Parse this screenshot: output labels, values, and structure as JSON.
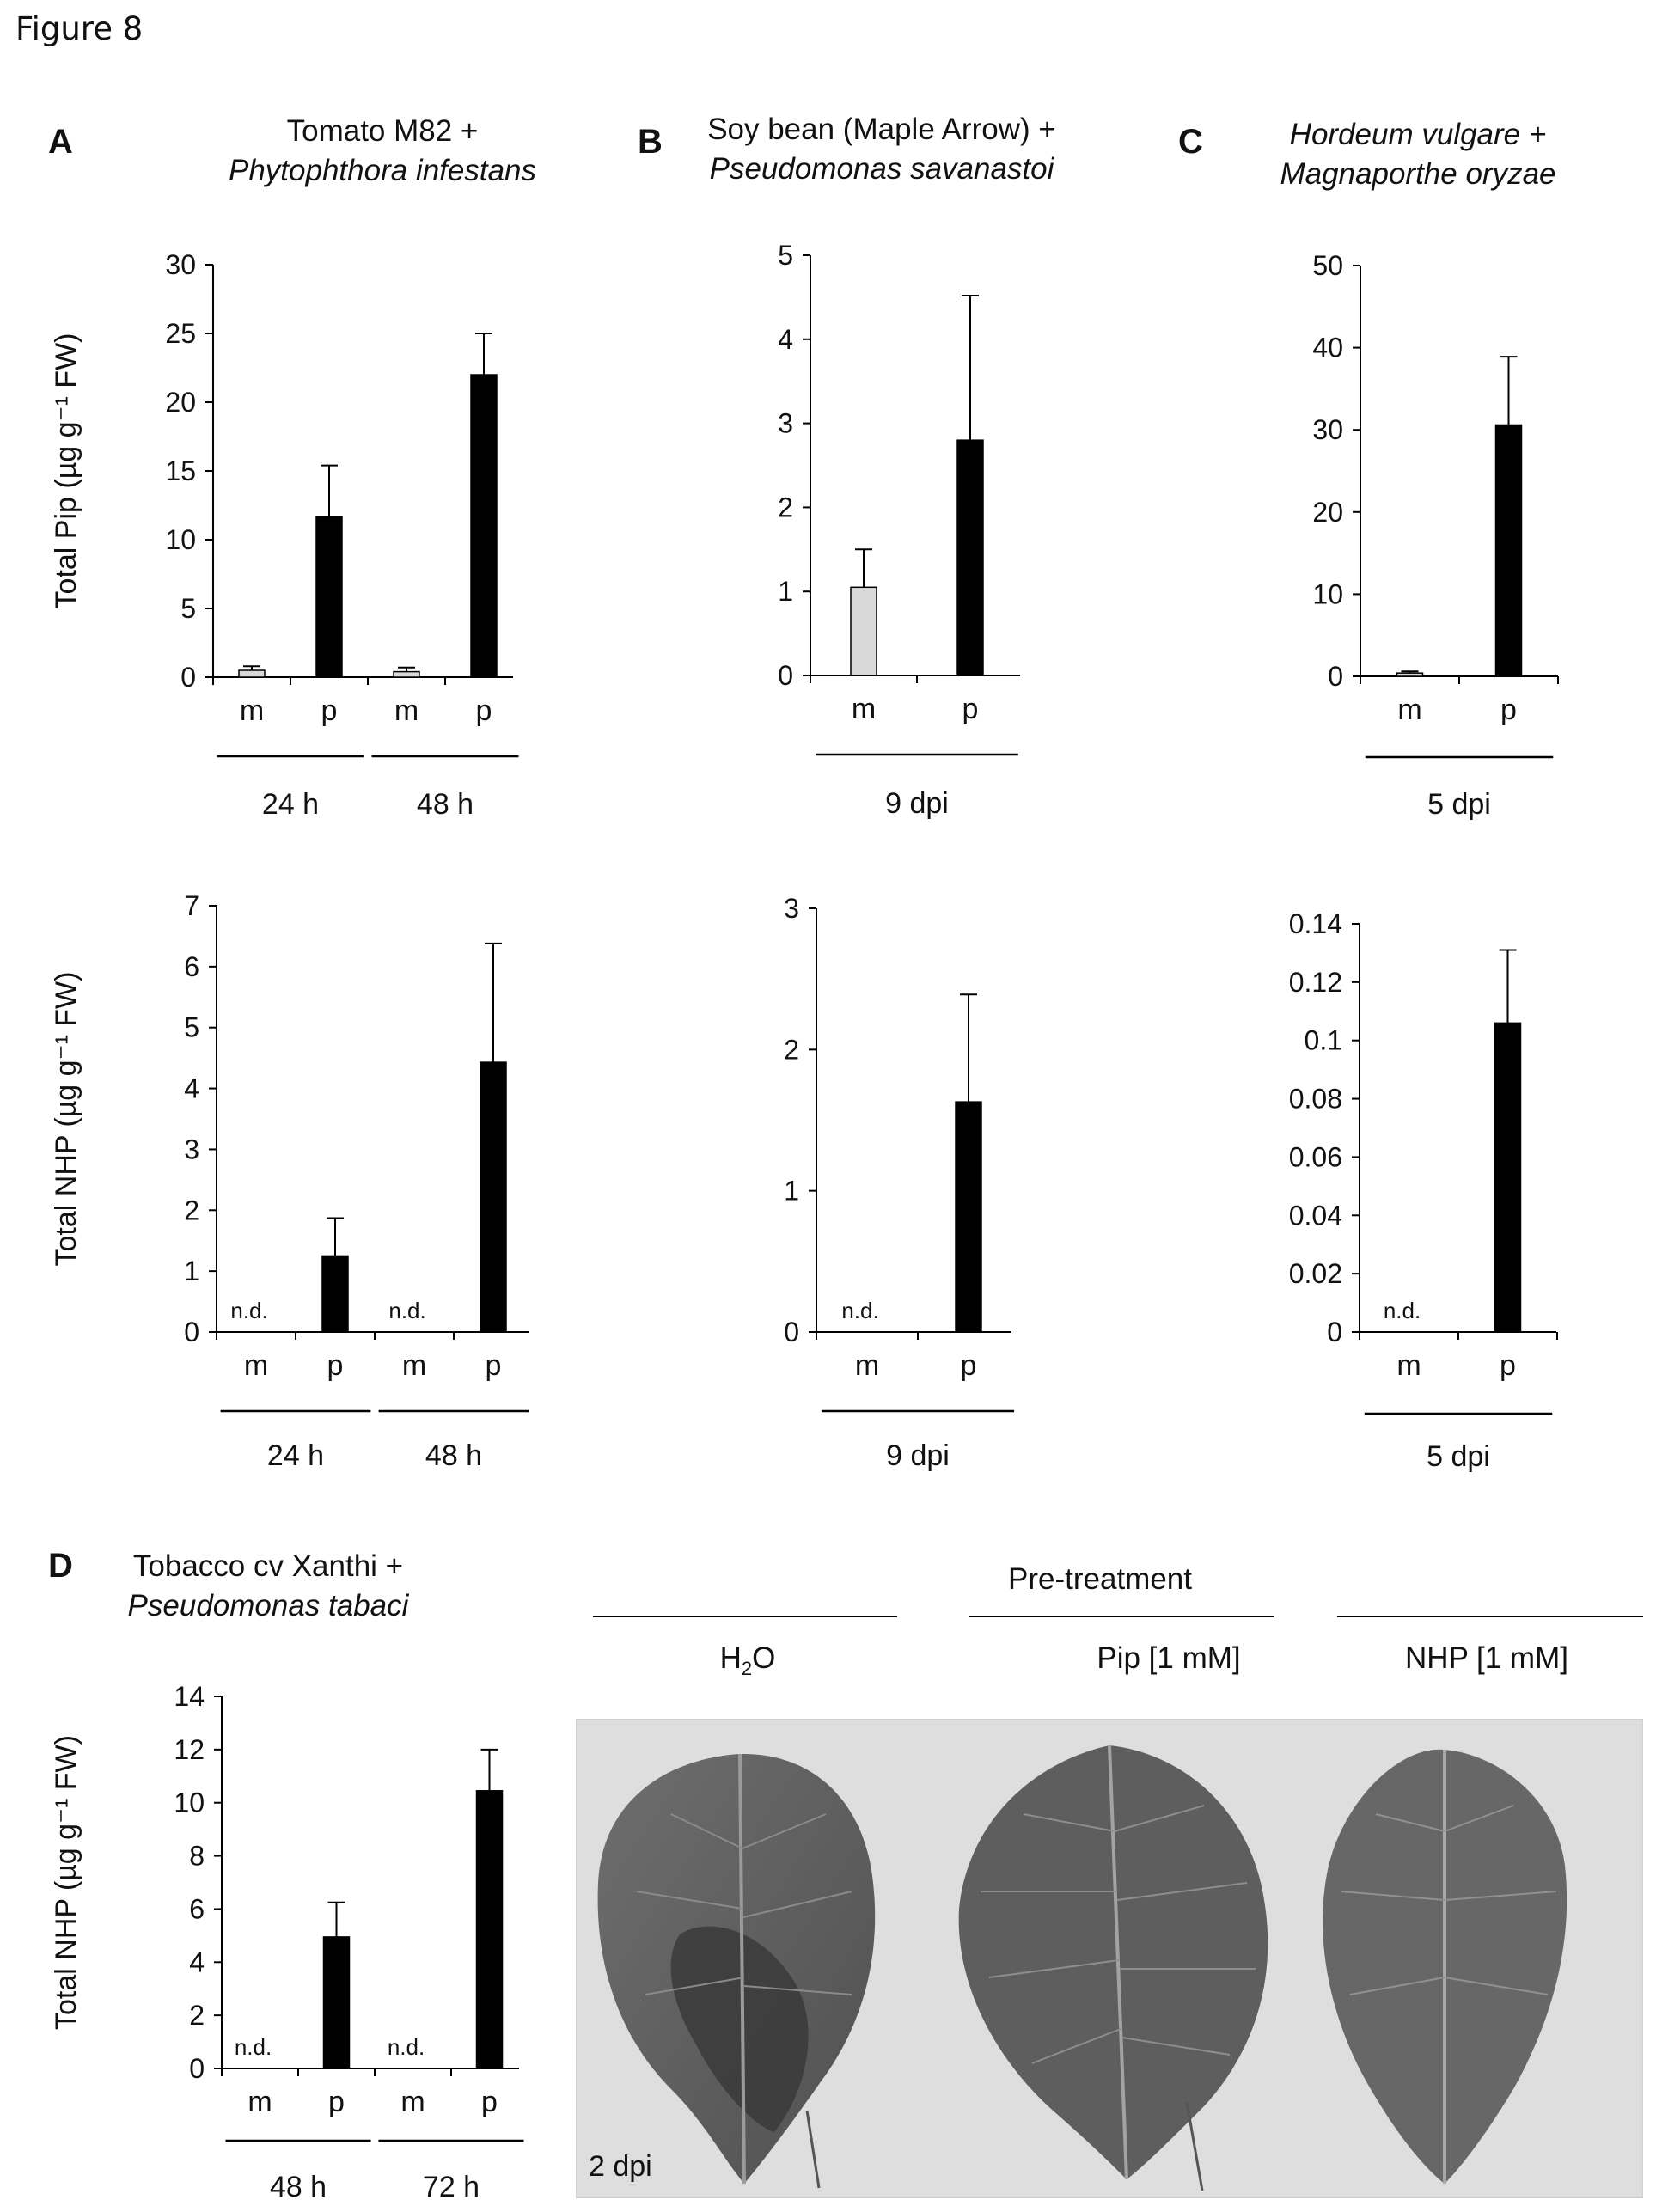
{
  "figure_label": "Figure 8",
  "panels": {
    "A": {
      "letter": "A",
      "title_line1": "Tomato M82 +",
      "title_line2": "Phytophthora infestans"
    },
    "B": {
      "letter": "B",
      "title_line1": "Soy bean (Maple Arrow) +",
      "title_line2": "Pseudomonas savanastoi"
    },
    "C": {
      "letter": "C",
      "title_line1": "Hordeum vulgare +",
      "title_line2": "Magnaporthe oryzae"
    },
    "D": {
      "letter": "D",
      "title_line1": "Tobacco cv Xanthi +",
      "title_line2": "Pseudomonas tabaci"
    }
  },
  "pretreatment": {
    "label": "Pre-treatment",
    "groups": [
      "H2O",
      "Pip [1 mM]",
      "NHP [1 mM]"
    ],
    "dpi_label": "2 dpi"
  },
  "colors": {
    "mock_bar": "#d9d9d9",
    "pathogen_bar": "#000000",
    "axis": "#000000"
  },
  "chart_data": [
    {
      "id": "A-pip",
      "type": "bar",
      "title": "",
      "ylabel": "Total Pip (µg g⁻¹ FW)",
      "ylim": [
        0,
        30
      ],
      "yticks": [
        "0",
        "5",
        "10",
        "15",
        "20",
        "25",
        "30"
      ],
      "categories": [
        "m",
        "p",
        "m",
        "p"
      ],
      "groups": [
        {
          "label": "24 h",
          "span": [
            0,
            1
          ]
        },
        {
          "label": "48 h",
          "span": [
            2,
            3
          ]
        }
      ],
      "values": [
        0.5,
        11.7,
        0.4,
        22.0
      ],
      "errors": [
        0.3,
        3.7,
        0.3,
        3.0
      ],
      "annotations": [
        null,
        null,
        null,
        null
      ]
    },
    {
      "id": "B-pip",
      "type": "bar",
      "title": "",
      "ylabel": "",
      "ylim": [
        0,
        5
      ],
      "yticks": [
        "0",
        "1",
        "2",
        "3",
        "4",
        "5"
      ],
      "categories": [
        "m",
        "p"
      ],
      "groups": [
        {
          "label": "9 dpi",
          "span": [
            0,
            1
          ]
        }
      ],
      "values": [
        1.05,
        2.8
      ],
      "errors": [
        0.45,
        1.72
      ],
      "annotations": [
        null,
        null
      ]
    },
    {
      "id": "C-pip",
      "type": "bar",
      "title": "",
      "ylabel": "",
      "ylim": [
        0,
        50
      ],
      "yticks": [
        "0",
        "10",
        "20",
        "30",
        "40",
        "50"
      ],
      "categories": [
        "m",
        "p"
      ],
      "groups": [
        {
          "label": "5 dpi",
          "span": [
            0,
            1
          ]
        }
      ],
      "values": [
        0.4,
        30.6
      ],
      "errors": [
        0.2,
        8.3
      ],
      "annotations": [
        null,
        null
      ]
    },
    {
      "id": "A-nhp",
      "type": "bar",
      "title": "",
      "ylabel": "Total NHP (µg g⁻¹ FW)",
      "ylim": [
        0,
        7
      ],
      "yticks": [
        "0",
        "1",
        "2",
        "3",
        "4",
        "5",
        "6",
        "7"
      ],
      "categories": [
        "m",
        "p",
        "m",
        "p"
      ],
      "groups": [
        {
          "label": "24 h",
          "span": [
            0,
            1
          ]
        },
        {
          "label": "48 h",
          "span": [
            2,
            3
          ]
        }
      ],
      "values": [
        0,
        1.25,
        0,
        4.43
      ],
      "errors": [
        0,
        0.62,
        0,
        1.95
      ],
      "annotations": [
        "n.d.",
        null,
        "n.d.",
        null
      ]
    },
    {
      "id": "B-nhp",
      "type": "bar",
      "title": "",
      "ylabel": "",
      "ylim": [
        0,
        3
      ],
      "yticks": [
        "0",
        "1",
        "2",
        "3"
      ],
      "categories": [
        "m",
        "p"
      ],
      "groups": [
        {
          "label": "9 dpi",
          "span": [
            0,
            1
          ]
        }
      ],
      "values": [
        0,
        1.63
      ],
      "errors": [
        0,
        0.76
      ],
      "annotations": [
        "n.d.",
        null
      ]
    },
    {
      "id": "C-nhp",
      "type": "bar",
      "title": "",
      "ylabel": "",
      "ylim": [
        0,
        0.14
      ],
      "yticks": [
        "0",
        "0.02",
        "0.04",
        "0.06",
        "0.08",
        "0.1",
        "0.12",
        "0.14"
      ],
      "categories": [
        "m",
        "p"
      ],
      "groups": [
        {
          "label": "5 dpi",
          "span": [
            0,
            1
          ]
        }
      ],
      "values": [
        0,
        0.106
      ],
      "errors": [
        0,
        0.025
      ],
      "annotations": [
        "n.d.",
        null
      ]
    },
    {
      "id": "D-nhp",
      "type": "bar",
      "title": "",
      "ylabel": "Total NHP (µg g⁻¹ FW)",
      "ylim": [
        0,
        14
      ],
      "yticks": [
        "0",
        "2",
        "4",
        "6",
        "8",
        "10",
        "12",
        "14"
      ],
      "categories": [
        "m",
        "p",
        "m",
        "p"
      ],
      "groups": [
        {
          "label": "48 h",
          "span": [
            0,
            1
          ]
        },
        {
          "label": "72 h",
          "span": [
            2,
            3
          ]
        }
      ],
      "values": [
        0,
        4.95,
        0,
        10.45
      ],
      "errors": [
        0,
        1.3,
        0,
        1.55
      ],
      "annotations": [
        "n.d.",
        null,
        "n.d.",
        null
      ]
    }
  ]
}
